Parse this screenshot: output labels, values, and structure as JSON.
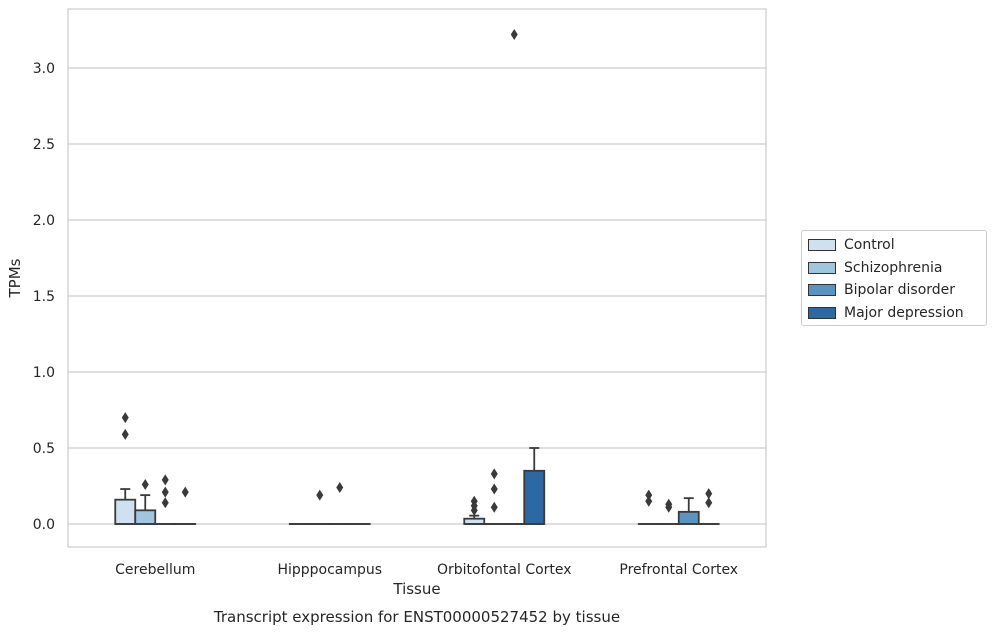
{
  "chart_data": {
    "type": "box",
    "xlabel": "Tissue",
    "ylabel": "TPMs",
    "caption": "Transcript expression for ENST00000527452 by tissue",
    "categories": [
      "Cerebellum",
      "Hipppocampus",
      "Orbitofontal Cortex",
      "Prefrontal Cortex"
    ],
    "ylim": [
      -0.16,
      3.4
    ],
    "yticks": [
      0.0,
      0.5,
      1.0,
      1.5,
      2.0,
      2.5,
      3.0
    ],
    "ytick_labels": [
      "0.0",
      "0.5",
      "1.0",
      "1.5",
      "2.0",
      "2.5",
      "3.0"
    ],
    "grid": true,
    "legend_position": "right",
    "series": [
      {
        "name": "Control",
        "color": "#cfe0f0",
        "boxes": [
          {
            "q1": 0.0,
            "median": 0.0,
            "q3": 0.16,
            "whisker_high": 0.23,
            "outliers": [
              0.59,
              0.7
            ]
          },
          {
            "q1": 0.0,
            "median": 0.0,
            "q3": 0.0,
            "whisker_high": 0.0,
            "outliers": []
          },
          {
            "q1": 0.0,
            "median": 0.0,
            "q3": 0.035,
            "whisker_high": 0.055,
            "outliers": [
              0.09,
              0.12,
              0.15
            ]
          },
          {
            "q1": 0.0,
            "median": 0.0,
            "q3": 0.0,
            "whisker_high": 0.0,
            "outliers": [
              0.15,
              0.19
            ]
          }
        ]
      },
      {
        "name": "Schizophrenia",
        "color": "#9fc5df",
        "boxes": [
          {
            "q1": 0.0,
            "median": 0.0,
            "q3": 0.09,
            "whisker_high": 0.19,
            "outliers": [
              0.26
            ]
          },
          {
            "q1": 0.0,
            "median": 0.0,
            "q3": 0.0,
            "whisker_high": 0.0,
            "outliers": [
              0.19
            ]
          },
          {
            "q1": 0.0,
            "median": 0.0,
            "q3": 0.0,
            "whisker_high": 0.0,
            "outliers": [
              0.11,
              0.23,
              0.33
            ]
          },
          {
            "q1": 0.0,
            "median": 0.0,
            "q3": 0.0,
            "whisker_high": 0.0,
            "outliers": [
              0.11,
              0.13
            ]
          }
        ]
      },
      {
        "name": "Bipolar disorder",
        "color": "#5a95c1",
        "boxes": [
          {
            "q1": 0.0,
            "median": 0.0,
            "q3": 0.0,
            "whisker_high": 0.0,
            "outliers": [
              0.14,
              0.21,
              0.29
            ]
          },
          {
            "q1": 0.0,
            "median": 0.0,
            "q3": 0.0,
            "whisker_high": 0.0,
            "outliers": [
              0.24
            ]
          },
          {
            "q1": 0.0,
            "median": 0.0,
            "q3": 0.0,
            "whisker_high": 0.0,
            "outliers": [
              3.22
            ]
          },
          {
            "q1": 0.0,
            "median": 0.0,
            "q3": 0.08,
            "whisker_high": 0.17,
            "outliers": []
          }
        ]
      },
      {
        "name": "Major depression",
        "color": "#2b68a4",
        "boxes": [
          {
            "q1": 0.0,
            "median": 0.0,
            "q3": 0.0,
            "whisker_high": 0.0,
            "outliers": [
              0.21
            ]
          },
          {
            "q1": 0.0,
            "median": 0.0,
            "q3": 0.0,
            "whisker_high": 0.0,
            "outliers": []
          },
          {
            "q1": 0.0,
            "median": 0.0,
            "q3": 0.35,
            "whisker_high": 0.5,
            "outliers": []
          },
          {
            "q1": 0.0,
            "median": 0.0,
            "q3": 0.0,
            "whisker_high": 0.0,
            "outliers": [
              0.14,
              0.2
            ]
          }
        ]
      }
    ]
  }
}
